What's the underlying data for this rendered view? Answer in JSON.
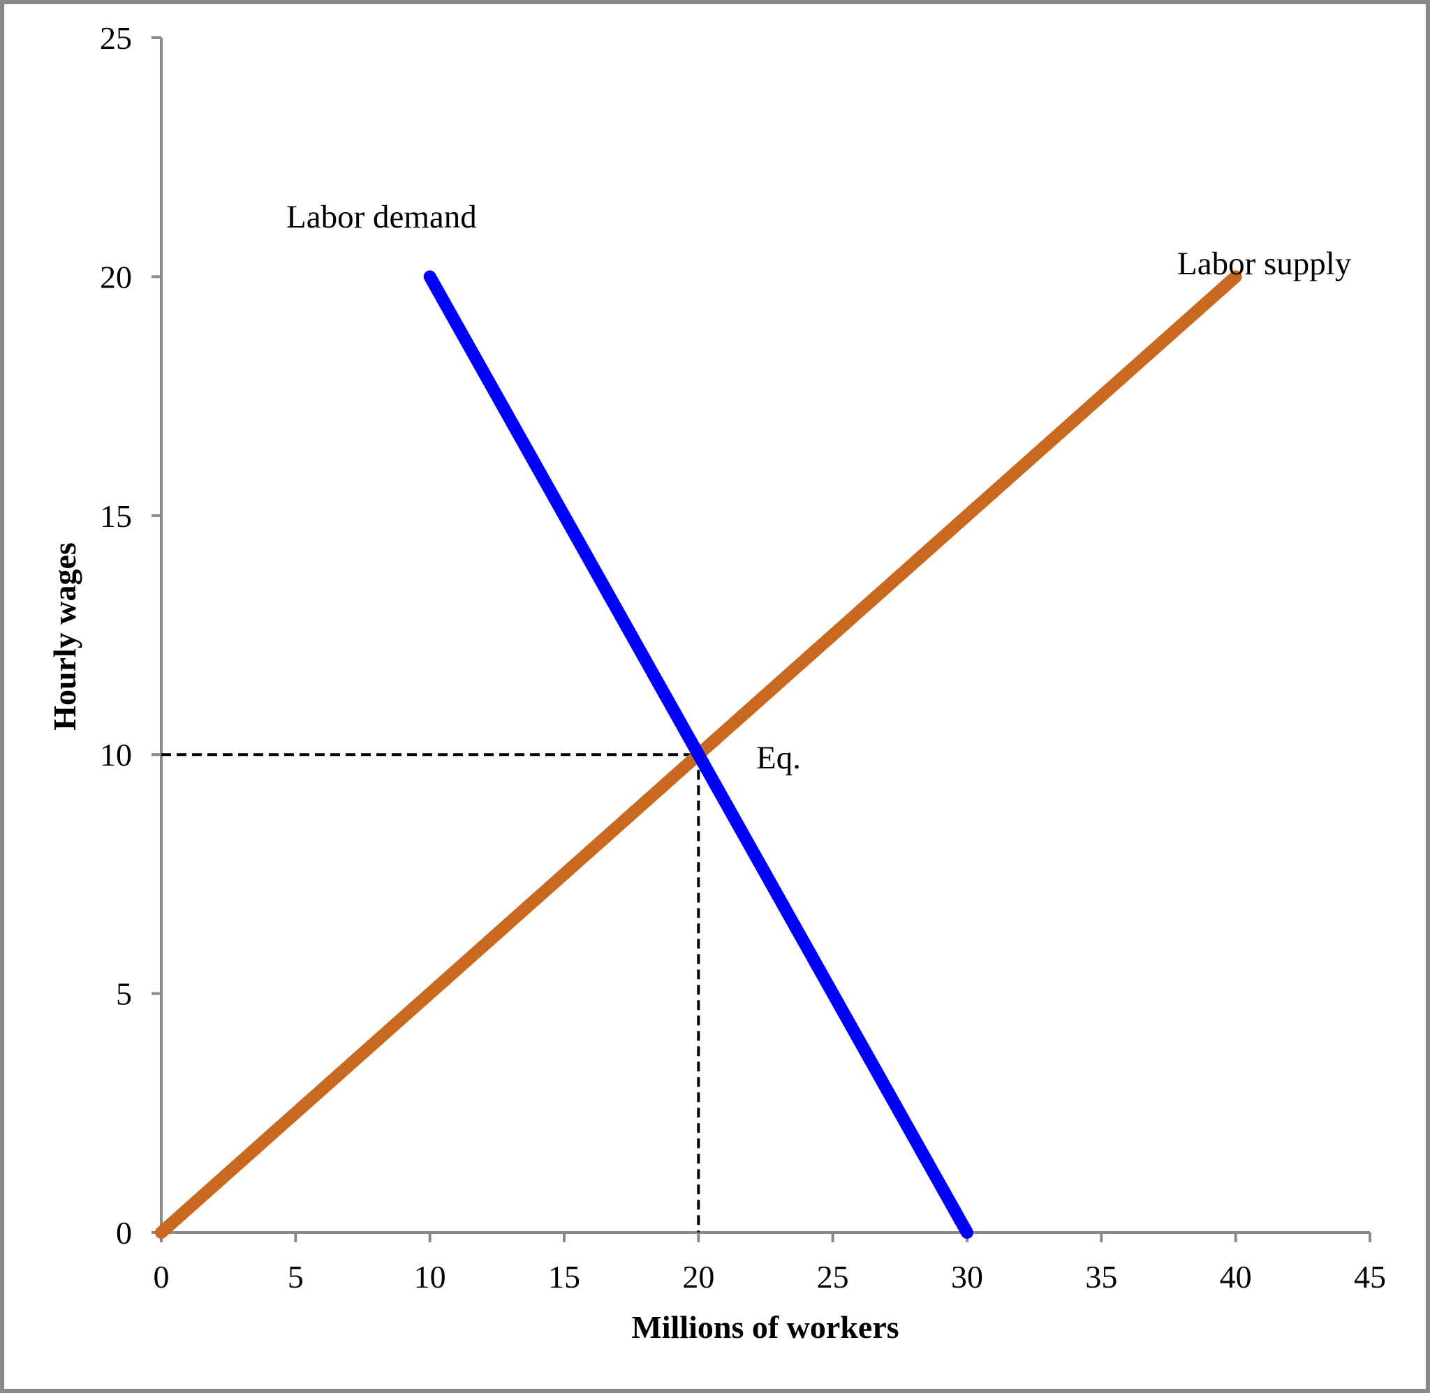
{
  "chart_data": {
    "type": "line",
    "title": "",
    "xlabel": "Millions of workers",
    "ylabel": "Hourly wages",
    "xlim": [
      0,
      45
    ],
    "ylim": [
      0,
      25
    ],
    "x_ticks": [
      0,
      5,
      10,
      15,
      20,
      25,
      30,
      35,
      40,
      45
    ],
    "y_ticks": [
      0,
      5,
      10,
      15,
      20,
      25
    ],
    "grid": false,
    "series": [
      {
        "name": "Labor demand",
        "color": "#0000FF",
        "points": [
          [
            10,
            20
          ],
          [
            30,
            0
          ]
        ]
      },
      {
        "name": "Labor supply",
        "color": "#C8691F",
        "points": [
          [
            0,
            0
          ],
          [
            40,
            20
          ]
        ]
      }
    ],
    "annotations": [
      {
        "text": "Eq.",
        "x": 20,
        "y": 10
      }
    ],
    "reference_lines": {
      "x": 20,
      "y": 10,
      "style": "dashed",
      "color": "#000000"
    },
    "axis_color": "#898989"
  }
}
